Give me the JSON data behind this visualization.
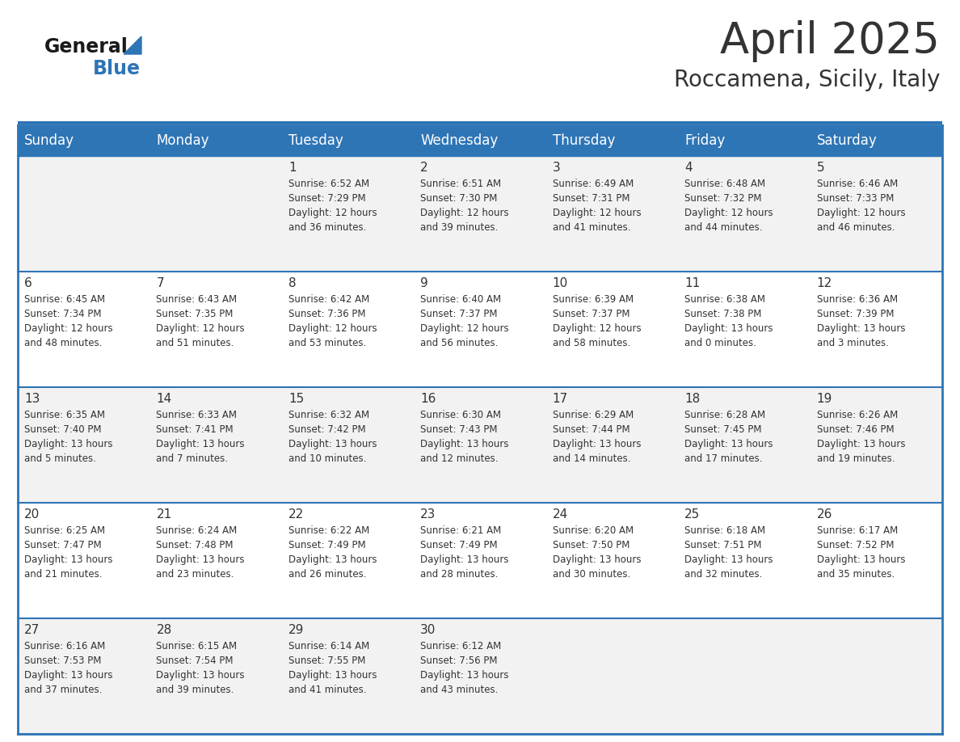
{
  "title": "April 2025",
  "subtitle": "Roccamena, Sicily, Italy",
  "header_color": "#2e75b6",
  "header_text_color": "#ffffff",
  "cell_bg_row0": "#f2f2f2",
  "cell_bg_row1": "#ffffff",
  "cell_bg_row2": "#f2f2f2",
  "cell_bg_row3": "#ffffff",
  "cell_bg_row4": "#f2f2f2",
  "day_names": [
    "Sunday",
    "Monday",
    "Tuesday",
    "Wednesday",
    "Thursday",
    "Friday",
    "Saturday"
  ],
  "weeks": [
    [
      {
        "day": "",
        "sunrise": "",
        "sunset": "",
        "daylight": ""
      },
      {
        "day": "",
        "sunrise": "",
        "sunset": "",
        "daylight": ""
      },
      {
        "day": "1",
        "sunrise": "Sunrise: 6:52 AM",
        "sunset": "Sunset: 7:29 PM",
        "daylight": "Daylight: 12 hours\nand 36 minutes."
      },
      {
        "day": "2",
        "sunrise": "Sunrise: 6:51 AM",
        "sunset": "Sunset: 7:30 PM",
        "daylight": "Daylight: 12 hours\nand 39 minutes."
      },
      {
        "day": "3",
        "sunrise": "Sunrise: 6:49 AM",
        "sunset": "Sunset: 7:31 PM",
        "daylight": "Daylight: 12 hours\nand 41 minutes."
      },
      {
        "day": "4",
        "sunrise": "Sunrise: 6:48 AM",
        "sunset": "Sunset: 7:32 PM",
        "daylight": "Daylight: 12 hours\nand 44 minutes."
      },
      {
        "day": "5",
        "sunrise": "Sunrise: 6:46 AM",
        "sunset": "Sunset: 7:33 PM",
        "daylight": "Daylight: 12 hours\nand 46 minutes."
      }
    ],
    [
      {
        "day": "6",
        "sunrise": "Sunrise: 6:45 AM",
        "sunset": "Sunset: 7:34 PM",
        "daylight": "Daylight: 12 hours\nand 48 minutes."
      },
      {
        "day": "7",
        "sunrise": "Sunrise: 6:43 AM",
        "sunset": "Sunset: 7:35 PM",
        "daylight": "Daylight: 12 hours\nand 51 minutes."
      },
      {
        "day": "8",
        "sunrise": "Sunrise: 6:42 AM",
        "sunset": "Sunset: 7:36 PM",
        "daylight": "Daylight: 12 hours\nand 53 minutes."
      },
      {
        "day": "9",
        "sunrise": "Sunrise: 6:40 AM",
        "sunset": "Sunset: 7:37 PM",
        "daylight": "Daylight: 12 hours\nand 56 minutes."
      },
      {
        "day": "10",
        "sunrise": "Sunrise: 6:39 AM",
        "sunset": "Sunset: 7:37 PM",
        "daylight": "Daylight: 12 hours\nand 58 minutes."
      },
      {
        "day": "11",
        "sunrise": "Sunrise: 6:38 AM",
        "sunset": "Sunset: 7:38 PM",
        "daylight": "Daylight: 13 hours\nand 0 minutes."
      },
      {
        "day": "12",
        "sunrise": "Sunrise: 6:36 AM",
        "sunset": "Sunset: 7:39 PM",
        "daylight": "Daylight: 13 hours\nand 3 minutes."
      }
    ],
    [
      {
        "day": "13",
        "sunrise": "Sunrise: 6:35 AM",
        "sunset": "Sunset: 7:40 PM",
        "daylight": "Daylight: 13 hours\nand 5 minutes."
      },
      {
        "day": "14",
        "sunrise": "Sunrise: 6:33 AM",
        "sunset": "Sunset: 7:41 PM",
        "daylight": "Daylight: 13 hours\nand 7 minutes."
      },
      {
        "day": "15",
        "sunrise": "Sunrise: 6:32 AM",
        "sunset": "Sunset: 7:42 PM",
        "daylight": "Daylight: 13 hours\nand 10 minutes."
      },
      {
        "day": "16",
        "sunrise": "Sunrise: 6:30 AM",
        "sunset": "Sunset: 7:43 PM",
        "daylight": "Daylight: 13 hours\nand 12 minutes."
      },
      {
        "day": "17",
        "sunrise": "Sunrise: 6:29 AM",
        "sunset": "Sunset: 7:44 PM",
        "daylight": "Daylight: 13 hours\nand 14 minutes."
      },
      {
        "day": "18",
        "sunrise": "Sunrise: 6:28 AM",
        "sunset": "Sunset: 7:45 PM",
        "daylight": "Daylight: 13 hours\nand 17 minutes."
      },
      {
        "day": "19",
        "sunrise": "Sunrise: 6:26 AM",
        "sunset": "Sunset: 7:46 PM",
        "daylight": "Daylight: 13 hours\nand 19 minutes."
      }
    ],
    [
      {
        "day": "20",
        "sunrise": "Sunrise: 6:25 AM",
        "sunset": "Sunset: 7:47 PM",
        "daylight": "Daylight: 13 hours\nand 21 minutes."
      },
      {
        "day": "21",
        "sunrise": "Sunrise: 6:24 AM",
        "sunset": "Sunset: 7:48 PM",
        "daylight": "Daylight: 13 hours\nand 23 minutes."
      },
      {
        "day": "22",
        "sunrise": "Sunrise: 6:22 AM",
        "sunset": "Sunset: 7:49 PM",
        "daylight": "Daylight: 13 hours\nand 26 minutes."
      },
      {
        "day": "23",
        "sunrise": "Sunrise: 6:21 AM",
        "sunset": "Sunset: 7:49 PM",
        "daylight": "Daylight: 13 hours\nand 28 minutes."
      },
      {
        "day": "24",
        "sunrise": "Sunrise: 6:20 AM",
        "sunset": "Sunset: 7:50 PM",
        "daylight": "Daylight: 13 hours\nand 30 minutes."
      },
      {
        "day": "25",
        "sunrise": "Sunrise: 6:18 AM",
        "sunset": "Sunset: 7:51 PM",
        "daylight": "Daylight: 13 hours\nand 32 minutes."
      },
      {
        "day": "26",
        "sunrise": "Sunrise: 6:17 AM",
        "sunset": "Sunset: 7:52 PM",
        "daylight": "Daylight: 13 hours\nand 35 minutes."
      }
    ],
    [
      {
        "day": "27",
        "sunrise": "Sunrise: 6:16 AM",
        "sunset": "Sunset: 7:53 PM",
        "daylight": "Daylight: 13 hours\nand 37 minutes."
      },
      {
        "day": "28",
        "sunrise": "Sunrise: 6:15 AM",
        "sunset": "Sunset: 7:54 PM",
        "daylight": "Daylight: 13 hours\nand 39 minutes."
      },
      {
        "day": "29",
        "sunrise": "Sunrise: 6:14 AM",
        "sunset": "Sunset: 7:55 PM",
        "daylight": "Daylight: 13 hours\nand 41 minutes."
      },
      {
        "day": "30",
        "sunrise": "Sunrise: 6:12 AM",
        "sunset": "Sunset: 7:56 PM",
        "daylight": "Daylight: 13 hours\nand 43 minutes."
      },
      {
        "day": "",
        "sunrise": "",
        "sunset": "",
        "daylight": ""
      },
      {
        "day": "",
        "sunrise": "",
        "sunset": "",
        "daylight": ""
      },
      {
        "day": "",
        "sunrise": "",
        "sunset": "",
        "daylight": ""
      }
    ]
  ],
  "logo_text_general": "General",
  "logo_text_blue": "Blue",
  "logo_color_general": "#1a1a1a",
  "logo_color_blue": "#2e75b6",
  "logo_triangle_color": "#2e75b6",
  "text_color": "#333333",
  "border_color": "#2e75b6",
  "cell_text_fontsize": 8.5,
  "day_num_fontsize": 11,
  "header_fontsize": 12,
  "title_fontsize": 38,
  "subtitle_fontsize": 20
}
